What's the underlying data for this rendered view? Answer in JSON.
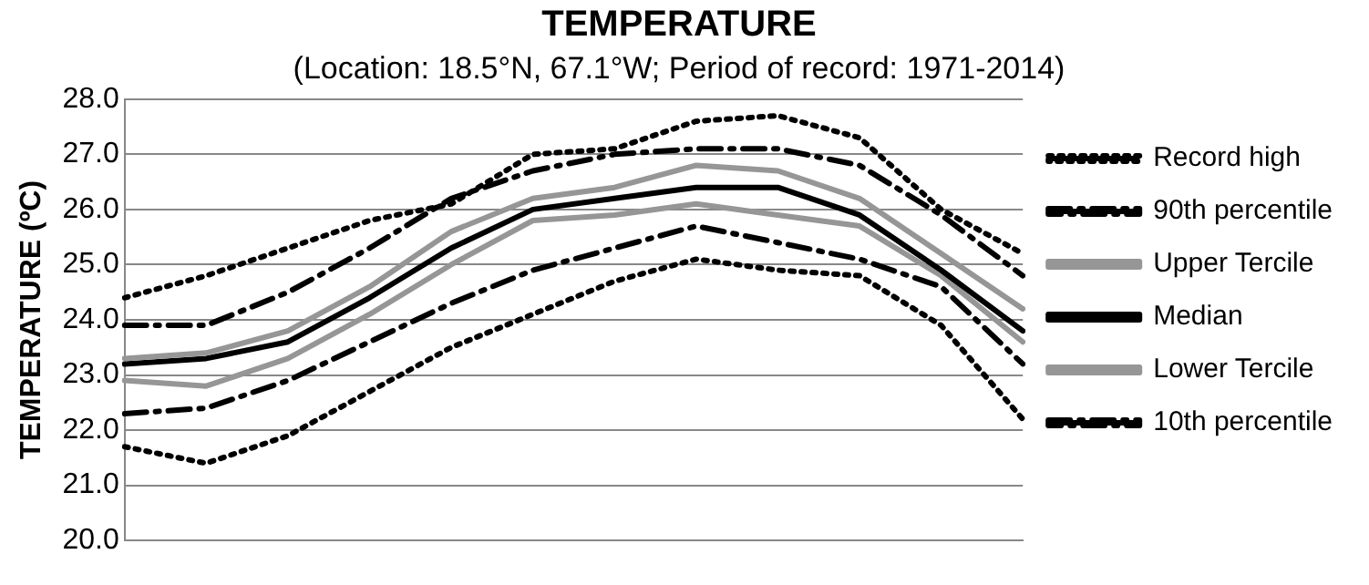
{
  "chart_data": {
    "type": "line",
    "title": "TEMPERATURE",
    "subtitle": "(Location: 18.5°N, 67.1°W; Period of record: 1971-2014)",
    "ylabel": "TEMPERATURE (ºC)",
    "categories": [
      null,
      null,
      null,
      null,
      null,
      null,
      null,
      null,
      null,
      null,
      null,
      null
    ],
    "ylim": [
      20,
      28
    ],
    "yticks": [
      {
        "value": 20,
        "label": "20.0"
      },
      {
        "value": 21,
        "label": "21.0"
      },
      {
        "value": 22,
        "label": "22.0"
      },
      {
        "value": 23,
        "label": "23.0"
      },
      {
        "value": 24,
        "label": "24.0"
      },
      {
        "value": 25,
        "label": "25.0"
      },
      {
        "value": 26,
        "label": "26.0"
      },
      {
        "value": 27,
        "label": "27.0"
      },
      {
        "value": 28,
        "label": "28.0"
      }
    ],
    "grid": "y",
    "legend": "right",
    "marker": "none",
    "series": [
      {
        "name": "Record high",
        "color": "#000000",
        "line_style": "dotted",
        "values": [
          24.4,
          24.8,
          25.3,
          25.8,
          26.1,
          27.0,
          27.1,
          27.6,
          27.7,
          27.3,
          26.0,
          25.2
        ]
      },
      {
        "name": "90th percentile",
        "color": "#000000",
        "line_style": "dashed",
        "values": [
          23.9,
          23.9,
          24.5,
          25.3,
          26.2,
          26.7,
          27.0,
          27.1,
          27.1,
          26.8,
          25.9,
          24.8
        ]
      },
      {
        "name": "Upper Tercile",
        "color": "#969696",
        "line_style": "solid",
        "values": [
          23.3,
          23.4,
          23.8,
          24.6,
          25.6,
          26.2,
          26.4,
          26.8,
          26.7,
          26.2,
          25.2,
          24.2
        ]
      },
      {
        "name": "Median",
        "color": "#000000",
        "line_style": "solid",
        "values": [
          23.2,
          23.3,
          23.6,
          24.4,
          25.3,
          26.0,
          26.2,
          26.4,
          26.4,
          25.9,
          24.9,
          23.8
        ]
      },
      {
        "name": "Lower Tercile",
        "color": "#969696",
        "line_style": "solid",
        "values": [
          22.9,
          22.8,
          23.3,
          24.1,
          25.0,
          25.8,
          25.9,
          26.1,
          25.9,
          25.7,
          24.8,
          23.6
        ]
      },
      {
        "name": "10th percentile",
        "color": "#000000",
        "line_style": "dashed",
        "values": [
          22.3,
          22.4,
          22.9,
          23.6,
          24.3,
          24.9,
          25.3,
          25.7,
          25.4,
          25.1,
          24.6,
          23.2
        ]
      },
      {
        "color": "#000000",
        "line_style": "dotted",
        "values": [
          21.7,
          21.4,
          21.9,
          22.7,
          23.5,
          24.1,
          24.7,
          25.1,
          24.9,
          24.8,
          23.9,
          22.2
        ]
      }
    ]
  }
}
